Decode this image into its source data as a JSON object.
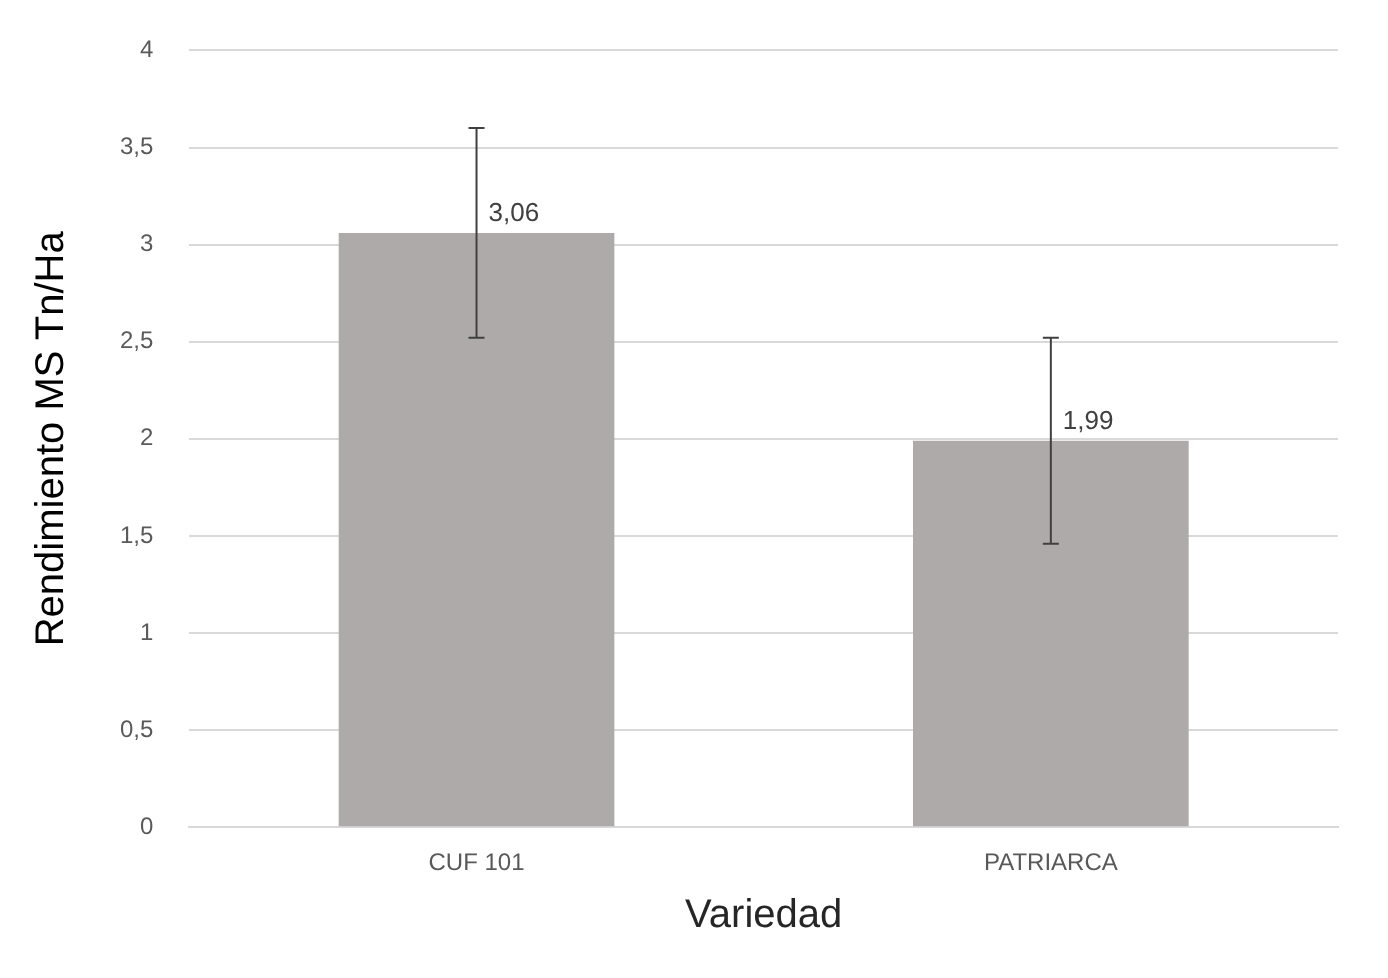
{
  "chart_data": {
    "type": "bar",
    "xlabel": "Variedad",
    "ylabel": "Rendimiento MS Tn/Ha",
    "categories": [
      "CUF 101",
      "PATRIARCA"
    ],
    "values": [
      3.06,
      1.99
    ],
    "value_labels": [
      "3,06",
      "1,99"
    ],
    "errors": [
      0.54,
      0.53
    ],
    "color": "#aeaaaa",
    "ylim": [
      0,
      4
    ],
    "yticks": [
      0,
      {
        "value": 0.5,
        "label": "0,5"
      },
      1,
      {
        "value": 1.5,
        "label": "1,5"
      },
      2,
      {
        "value": 2.5,
        "label": "2,5"
      },
      3,
      {
        "value": 3.5,
        "label": "3,5"
      },
      4
    ],
    "grid": "y",
    "legend": false
  }
}
